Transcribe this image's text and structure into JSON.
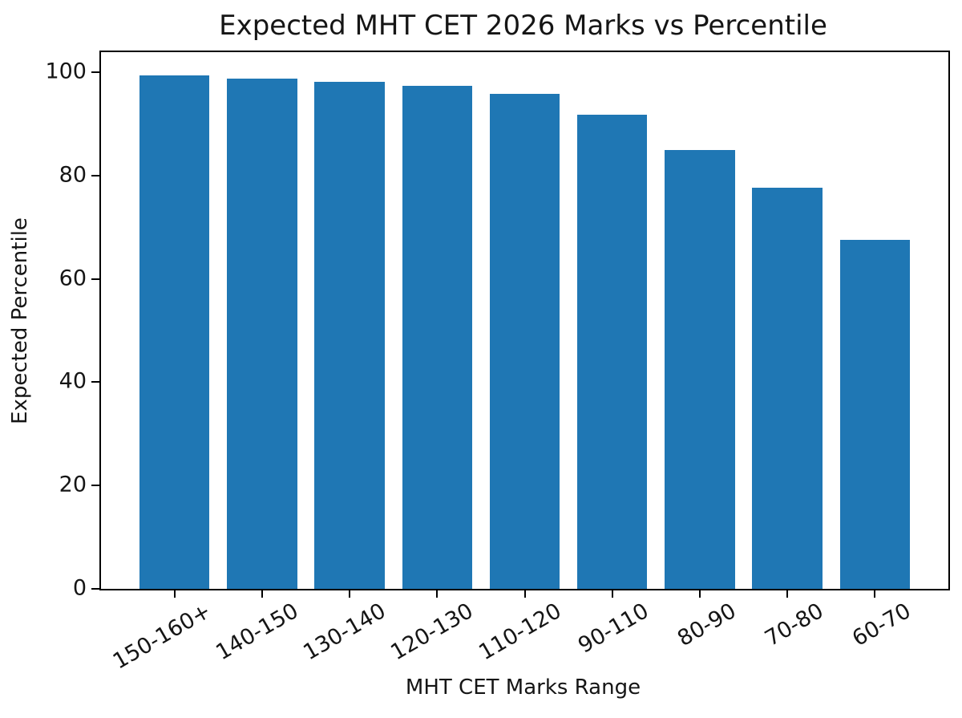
{
  "chart_data": {
    "type": "bar",
    "title": "Expected MHT CET 2026 Marks vs Percentile",
    "xlabel": "MHT CET Marks Range",
    "ylabel": "Expected Percentile",
    "categories": [
      "150-160+",
      "140-150",
      "130-140",
      "120-130",
      "110-120",
      "90-110",
      "80-90",
      "70-80",
      "60-70"
    ],
    "values": [
      99.4,
      98.7,
      98.1,
      97.4,
      95.9,
      91.8,
      85,
      77.6,
      67.5
    ],
    "yticks": [
      0,
      20,
      40,
      60,
      80,
      100
    ],
    "ylim": [
      0,
      103.9
    ],
    "xtick_rotation_deg": 30,
    "bar_color": "#1f77b4",
    "axis_color": "#000000",
    "text_color": "#151515",
    "grid": false,
    "legend": "none"
  }
}
